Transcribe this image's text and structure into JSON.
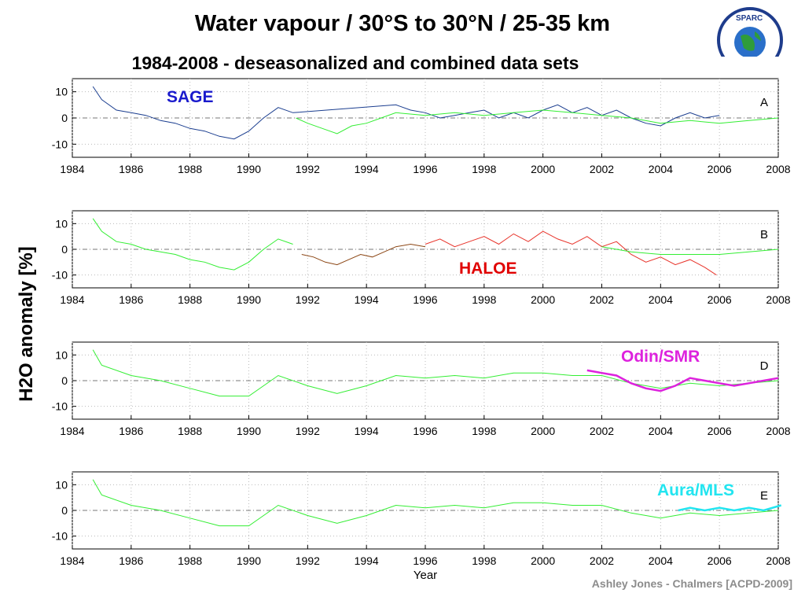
{
  "header": {
    "title": "Water vapour  /  30°S to 30°N   /  25-35 km",
    "subtitle": "1984-2008 - deseasonalized and combined data sets"
  },
  "logo": {
    "text": "SPARC",
    "icon": "sparc-globe-logo"
  },
  "credit": "Ashley Jones - Chalmers [ACPD-2009]",
  "ylabel": "H2O anomaly [%]",
  "xlabel": "Year",
  "colors": {
    "combined": "#33ee33",
    "sage": "#1a3d8f",
    "sage_label": "#1a1acc",
    "haloe_early": "#8b4513",
    "haloe": "#e8332a",
    "haloe_label": "#e00000",
    "odin": "#dd22dd",
    "aura": "#22e5f0"
  },
  "chart_data": [
    {
      "type": "line",
      "panel": "A",
      "xlim": [
        1984,
        2008
      ],
      "ylim": [
        -15,
        15
      ],
      "yticks": [
        -10,
        0,
        10
      ],
      "xticks": [
        1984,
        1986,
        1988,
        1990,
        1992,
        1994,
        1996,
        1998,
        2000,
        2002,
        2004,
        2006,
        2008
      ],
      "grid": true,
      "series": [
        {
          "name": "SAGE",
          "color": "sage",
          "x": [
            1984.7,
            1985,
            1985.5,
            1986,
            1986.5,
            1987,
            1987.5,
            1988,
            1988.5,
            1989,
            1989.5,
            1990,
            1990.5,
            1991,
            1991.5,
            1995,
            1995.5,
            1996,
            1996.5,
            1997,
            1997.5,
            1998,
            1998.5,
            1999,
            1999.5,
            2000,
            2000.5,
            2001,
            2001.5,
            2002,
            2002.5,
            2003,
            2003.5,
            2004,
            2004.5,
            2005,
            2005.5,
            2006
          ],
          "y": [
            12,
            7,
            3,
            2,
            1,
            -1,
            -2,
            -4,
            -5,
            -7,
            -8,
            -5,
            0,
            4,
            2,
            5,
            3,
            2,
            0,
            1,
            2,
            3,
            0,
            2,
            0,
            3,
            5,
            2,
            4,
            1,
            3,
            0,
            -2,
            -3,
            0,
            2,
            0,
            1
          ]
        },
        {
          "name": "",
          "color": "combined",
          "x": [
            1991.6,
            1992,
            1992.5,
            1993,
            1993.5,
            1994,
            1994.5,
            1995,
            1996,
            1997,
            1998,
            1999,
            2000,
            2001,
            2002,
            2003,
            2004,
            2005,
            2006,
            2007,
            2008
          ],
          "y": [
            0,
            -2,
            -4,
            -6,
            -3,
            -2,
            0,
            2,
            1,
            2,
            1,
            2,
            3,
            2,
            1,
            0,
            -2,
            -1,
            -2,
            -1,
            0
          ]
        }
      ],
      "annotations": [
        "SAGE"
      ]
    },
    {
      "type": "line",
      "panel": "B",
      "xlim": [
        1984,
        2008
      ],
      "ylim": [
        -15,
        15
      ],
      "yticks": [
        -10,
        0,
        10
      ],
      "xticks": [
        1984,
        1986,
        1988,
        1990,
        1992,
        1994,
        1996,
        1998,
        2000,
        2002,
        2004,
        2006,
        2008
      ],
      "grid": true,
      "series": [
        {
          "name": "",
          "color": "combined",
          "x": [
            1984.7,
            1985,
            1985.5,
            1986,
            1986.5,
            1987,
            1987.5,
            1988,
            1988.5,
            1989,
            1989.5,
            1990,
            1990.5,
            1991,
            1991.5
          ],
          "y": [
            12,
            7,
            3,
            2,
            0,
            -1,
            -2,
            -4,
            -5,
            -7,
            -8,
            -5,
            0,
            4,
            2
          ]
        },
        {
          "name": "HALOE",
          "color": "haloe_early",
          "x": [
            1991.8,
            1992.2,
            1992.6,
            1993,
            1993.4,
            1993.8,
            1994.2,
            1994.6,
            1995,
            1995.5,
            1996
          ],
          "y": [
            -2,
            -3,
            -5,
            -6,
            -4,
            -2,
            -3,
            -1,
            1,
            2,
            1
          ]
        },
        {
          "name": "HALOE",
          "color": "haloe",
          "x": [
            1996,
            1996.5,
            1997,
            1997.5,
            1998,
            1998.5,
            1999,
            1999.5,
            2000,
            2000.5,
            2001,
            2001.5,
            2002,
            2002.5,
            2003,
            2003.5,
            2004,
            2004.5,
            2005,
            2005.5,
            2005.9
          ],
          "y": [
            2,
            4,
            1,
            3,
            5,
            2,
            6,
            3,
            7,
            4,
            2,
            5,
            1,
            3,
            -2,
            -5,
            -3,
            -6,
            -4,
            -7,
            -10
          ]
        },
        {
          "name": "",
          "color": "combined",
          "x": [
            2002,
            2003,
            2004,
            2005,
            2006,
            2007,
            2008
          ],
          "y": [
            1,
            -1,
            -2,
            -2,
            -2,
            -1,
            0
          ]
        }
      ],
      "annotations": [
        "HALOE"
      ]
    },
    {
      "type": "line",
      "panel": "D",
      "xlim": [
        1984,
        2008
      ],
      "ylim": [
        -15,
        15
      ],
      "yticks": [
        -10,
        0,
        10
      ],
      "xticks": [
        1984,
        1986,
        1988,
        1990,
        1992,
        1994,
        1996,
        1998,
        2000,
        2002,
        2004,
        2006,
        2008
      ],
      "grid": true,
      "series": [
        {
          "name": "",
          "color": "combined",
          "x": [
            1984.7,
            1985,
            1986,
            1987,
            1988,
            1989,
            1990,
            1991,
            1992,
            1993,
            1994,
            1995,
            1996,
            1997,
            1998,
            1999,
            2000,
            2001,
            2002,
            2003,
            2004,
            2005,
            2006,
            2007,
            2008
          ],
          "y": [
            12,
            6,
            2,
            0,
            -3,
            -6,
            -6,
            2,
            -2,
            -5,
            -2,
            2,
            1,
            2,
            1,
            3,
            3,
            2,
            2,
            -1,
            -3,
            -1,
            -2,
            -1,
            0
          ]
        },
        {
          "name": "Odin/SMR",
          "color": "odin",
          "x": [
            2001.5,
            2002,
            2002.5,
            2003,
            2003.5,
            2004,
            2004.5,
            2005,
            2005.5,
            2006,
            2006.5,
            2007,
            2007.5,
            2008
          ],
          "y": [
            4,
            3,
            2,
            -1,
            -3,
            -4,
            -2,
            1,
            0,
            -1,
            -2,
            -1,
            0,
            1
          ]
        }
      ],
      "annotations": [
        "Odin/SMR"
      ]
    },
    {
      "type": "line",
      "panel": "E",
      "xlim": [
        1984,
        2008
      ],
      "ylim": [
        -15,
        15
      ],
      "yticks": [
        -10,
        0,
        10
      ],
      "xticks": [
        1984,
        1986,
        1988,
        1990,
        1992,
        1994,
        1996,
        1998,
        2000,
        2002,
        2004,
        2006,
        2008
      ],
      "xlabel": "Year",
      "grid": true,
      "series": [
        {
          "name": "",
          "color": "combined",
          "x": [
            1984.7,
            1985,
            1986,
            1987,
            1988,
            1989,
            1990,
            1991,
            1992,
            1993,
            1994,
            1995,
            1996,
            1997,
            1998,
            1999,
            2000,
            2001,
            2002,
            2003,
            2004,
            2005,
            2006,
            2007,
            2008
          ],
          "y": [
            12,
            6,
            2,
            0,
            -3,
            -6,
            -6,
            2,
            -2,
            -5,
            -2,
            2,
            1,
            2,
            1,
            3,
            3,
            2,
            2,
            -1,
            -3,
            -1,
            -2,
            -1,
            0
          ]
        },
        {
          "name": "Aura/MLS",
          "color": "aura",
          "x": [
            2004.6,
            2005,
            2005.5,
            2006,
            2006.5,
            2007,
            2007.5,
            2008.1
          ],
          "y": [
            0,
            1,
            0,
            1,
            0,
            1,
            0,
            2
          ]
        }
      ],
      "annotations": [
        "Aura/MLS"
      ]
    }
  ]
}
